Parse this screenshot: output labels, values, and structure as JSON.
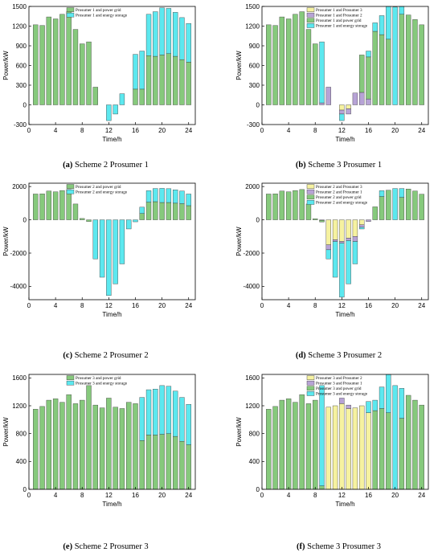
{
  "colors": {
    "grid": "#86c97c",
    "storage": "#5ce8ef",
    "p3": "#f6f2a0",
    "p2": "#b7a3d6",
    "p1": "#b7a3d6",
    "edge": "#3a3a3a"
  },
  "chart_data": [
    {
      "id": "a",
      "type": "bar",
      "caption": {
        "letter": "(a)",
        "text": " Scheme 2 Prosumer 1"
      },
      "xlabel": "Time/h",
      "ylabel": "Power/kW",
      "xlim": [
        0,
        25
      ],
      "ylim": [
        -300,
        1500
      ],
      "yticks": [
        -300,
        0,
        300,
        600,
        900,
        1200,
        1500
      ],
      "xticks": [
        0,
        4,
        8,
        12,
        16,
        20,
        24
      ],
      "legend_position": "top-left",
      "categories": [
        1,
        2,
        3,
        4,
        5,
        6,
        7,
        8,
        9,
        10,
        11,
        12,
        13,
        14,
        15,
        16,
        17,
        18,
        19,
        20,
        21,
        22,
        23,
        24
      ],
      "series": [
        {
          "name": "Prosumer 1 and power grid",
          "color_key": "grid",
          "values": [
            1220,
            1210,
            1340,
            1310,
            1380,
            1420,
            1150,
            930,
            960,
            270,
            0,
            0,
            0,
            0,
            0,
            240,
            240,
            750,
            740,
            760,
            780,
            740,
            690,
            650
          ]
        },
        {
          "name": "Prosumer 1 and energy storage",
          "color_key": "storage",
          "values": [
            0,
            0,
            0,
            0,
            0,
            0,
            0,
            0,
            0,
            0,
            0,
            -240,
            -140,
            170,
            0,
            530,
            580,
            630,
            680,
            720,
            690,
            670,
            640,
            590
          ]
        }
      ]
    },
    {
      "id": "b",
      "type": "bar",
      "caption": {
        "letter": "(b)",
        "text": " Scheme 3 Prosumer 1"
      },
      "xlabel": "Time/h",
      "ylabel": "Power/kW",
      "xlim": [
        0,
        25
      ],
      "ylim": [
        -300,
        1500
      ],
      "yticks": [
        -300,
        0,
        300,
        600,
        900,
        1200,
        1500
      ],
      "xticks": [
        0,
        4,
        8,
        12,
        16,
        20,
        24
      ],
      "legend_position": "top-left",
      "categories": [
        1,
        2,
        3,
        4,
        5,
        6,
        7,
        8,
        9,
        10,
        11,
        12,
        13,
        14,
        15,
        16,
        17,
        18,
        19,
        20,
        21,
        22,
        23,
        24
      ],
      "series": [
        {
          "name": "Prosumer 1 and Prosumer 3",
          "color_key": "p3",
          "values": [
            0,
            0,
            0,
            0,
            0,
            0,
            0,
            0,
            0,
            0,
            0,
            -80,
            -60,
            0,
            0,
            0,
            0,
            0,
            0,
            0,
            0,
            0,
            0,
            0
          ]
        },
        {
          "name": "Prosumer 1 and Prosumer 2",
          "color_key": "p2",
          "values": [
            0,
            0,
            0,
            0,
            0,
            0,
            0,
            0,
            30,
            270,
            0,
            -60,
            -80,
            180,
            190,
            90,
            0,
            0,
            0,
            0,
            0,
            0,
            0,
            0
          ]
        },
        {
          "name": "Prosumer 1 and power grid",
          "color_key": "grid",
          "values": [
            1220,
            1210,
            1340,
            1310,
            1380,
            1420,
            1150,
            930,
            0,
            0,
            0,
            0,
            0,
            0,
            570,
            640,
            1120,
            1070,
            1000,
            0,
            1380,
            1370,
            1300,
            1220
          ]
        },
        {
          "name": "Prosumer 1 and energy storage",
          "color_key": "storage",
          "values": [
            0,
            0,
            0,
            0,
            0,
            0,
            0,
            0,
            930,
            0,
            0,
            -100,
            0,
            0,
            0,
            90,
            130,
            290,
            580,
            1490,
            430,
            0,
            0,
            0
          ]
        }
      ]
    },
    {
      "id": "c",
      "type": "bar",
      "caption": {
        "letter": "(c)",
        "text": " Scheme 2 Prosumer 2"
      },
      "xlabel": "Time/h",
      "ylabel": "Power/kW",
      "xlim": [
        0,
        25
      ],
      "ylim": [
        -4800,
        2200
      ],
      "yticks": [
        -4000,
        -2000,
        0,
        2000
      ],
      "xticks": [
        0,
        4,
        8,
        12,
        16,
        20,
        24
      ],
      "legend_position": "top-left",
      "categories": [
        1,
        2,
        3,
        4,
        5,
        6,
        7,
        8,
        9,
        10,
        11,
        12,
        13,
        14,
        15,
        16,
        17,
        18,
        19,
        20,
        21,
        22,
        23,
        24
      ],
      "series": [
        {
          "name": "Prosumer 2 and power grid",
          "color_key": "grid",
          "values": [
            1550,
            1560,
            1730,
            1680,
            1760,
            1820,
            950,
            80,
            -100,
            0,
            0,
            0,
            0,
            0,
            0,
            0,
            380,
            1060,
            1090,
            1040,
            1040,
            1000,
            970,
            850
          ]
        },
        {
          "name": "Prosumer 2 and energy storage",
          "color_key": "storage",
          "values": [
            0,
            0,
            0,
            0,
            0,
            0,
            0,
            0,
            0,
            -2350,
            -3450,
            -4550,
            -3850,
            -2650,
            -550,
            -120,
            380,
            690,
            790,
            850,
            830,
            800,
            760,
            700
          ]
        }
      ]
    },
    {
      "id": "d",
      "type": "bar",
      "caption": {
        "letter": "(d)",
        "text": " Scheme 3 Prosumer 2"
      },
      "xlabel": "Time/h",
      "ylabel": "Power/kW",
      "xlim": [
        0,
        25
      ],
      "ylim": [
        -4800,
        2200
      ],
      "yticks": [
        -4000,
        -2000,
        0,
        2000
      ],
      "xticks": [
        0,
        4,
        8,
        12,
        16,
        20,
        24
      ],
      "legend_position": "top-left",
      "categories": [
        1,
        2,
        3,
        4,
        5,
        6,
        7,
        8,
        9,
        10,
        11,
        12,
        13,
        14,
        15,
        16,
        17,
        18,
        19,
        20,
        21,
        22,
        23,
        24
      ],
      "series": [
        {
          "name": "Prosumer 2 and Prosumer 3",
          "color_key": "p3",
          "values": [
            0,
            0,
            0,
            0,
            0,
            0,
            0,
            0,
            0,
            -1500,
            -1200,
            -1300,
            -1100,
            -1000,
            -300,
            0,
            0,
            0,
            0,
            0,
            0,
            0,
            0,
            0
          ]
        },
        {
          "name": "Prosumer 2 and Prosumer 1",
          "color_key": "p1",
          "values": [
            0,
            0,
            0,
            0,
            0,
            0,
            0,
            0,
            -30,
            -300,
            -100,
            -100,
            -150,
            -300,
            -150,
            -100,
            0,
            0,
            0,
            0,
            0,
            0,
            0,
            0
          ]
        },
        {
          "name": "Prosumer 2 and power grid",
          "color_key": "grid",
          "values": [
            1550,
            1560,
            1730,
            1680,
            1760,
            1820,
            950,
            60,
            -100,
            0,
            0,
            0,
            0,
            0,
            0,
            0,
            780,
            1400,
            1780,
            0,
            1350,
            1850,
            1730,
            1540
          ]
        },
        {
          "name": "Prosumer 2 and energy storage",
          "color_key": "storage",
          "values": [
            0,
            0,
            0,
            0,
            0,
            0,
            0,
            0,
            0,
            -550,
            -2150,
            -3250,
            -2600,
            -1350,
            -100,
            0,
            0,
            350,
            0,
            1880,
            530,
            0,
            0,
            0
          ]
        }
      ]
    },
    {
      "id": "e",
      "type": "bar",
      "caption": {
        "letter": "(e)",
        "text": " Scheme 2 Prosumer 3"
      },
      "xlabel": "Time/h",
      "ylabel": "Power/kW",
      "xlim": [
        0,
        25
      ],
      "ylim": [
        0,
        1650
      ],
      "yticks": [
        0,
        400,
        800,
        1200,
        1600
      ],
      "xticks": [
        0,
        4,
        8,
        12,
        16,
        20,
        24
      ],
      "legend_position": "top-left",
      "categories": [
        1,
        2,
        3,
        4,
        5,
        6,
        7,
        8,
        9,
        10,
        11,
        12,
        13,
        14,
        15,
        16,
        17,
        18,
        19,
        20,
        21,
        22,
        23,
        24
      ],
      "series": [
        {
          "name": "Prosumer 3 and power grid",
          "color_key": "grid",
          "values": [
            1150,
            1190,
            1280,
            1300,
            1250,
            1360,
            1230,
            1280,
            1490,
            1210,
            1170,
            1310,
            1180,
            1160,
            1250,
            1230,
            700,
            780,
            780,
            790,
            800,
            760,
            690,
            640
          ]
        },
        {
          "name": "Prosumer 3 and energy storage",
          "color_key": "storage",
          "values": [
            0,
            0,
            0,
            0,
            0,
            0,
            0,
            0,
            0,
            0,
            0,
            0,
            0,
            0,
            0,
            0,
            620,
            650,
            660,
            700,
            680,
            650,
            630,
            580
          ]
        }
      ]
    },
    {
      "id": "f",
      "type": "bar",
      "caption": {
        "letter": "(f)",
        "text": " Scheme 3 Prosumer 3"
      },
      "xlabel": "Time/h",
      "ylabel": "Power/kW",
      "xlim": [
        0,
        25
      ],
      "ylim": [
        0,
        1650
      ],
      "yticks": [
        0,
        400,
        800,
        1200,
        1600
      ],
      "xticks": [
        0,
        4,
        8,
        12,
        16,
        20,
        24
      ],
      "legend_position": "top-left",
      "categories": [
        1,
        2,
        3,
        4,
        5,
        6,
        7,
        8,
        9,
        10,
        11,
        12,
        13,
        14,
        15,
        16,
        17,
        18,
        19,
        20,
        21,
        22,
        23,
        24
      ],
      "series": [
        {
          "name": "Prosumer 3 and Prosumer 2",
          "color_key": "p3",
          "values": [
            0,
            0,
            0,
            0,
            0,
            0,
            0,
            0,
            0,
            1180,
            1200,
            1230,
            1160,
            1170,
            1200,
            1100,
            0,
            0,
            0,
            0,
            0,
            0,
            0,
            0
          ]
        },
        {
          "name": "Prosumer 3 and Prosumer 1",
          "color_key": "p1",
          "values": [
            0,
            0,
            0,
            0,
            0,
            0,
            0,
            0,
            0,
            0,
            0,
            80,
            50,
            0,
            0,
            0,
            0,
            0,
            0,
            0,
            0,
            0,
            0,
            0
          ]
        },
        {
          "name": "Prosumer 3 and power grid",
          "color_key": "grid",
          "values": [
            1150,
            1190,
            1280,
            1300,
            1250,
            1360,
            1230,
            1280,
            50,
            0,
            0,
            0,
            0,
            0,
            0,
            0,
            1130,
            1160,
            1100,
            0,
            1020,
            1350,
            1280,
            1210
          ]
        },
        {
          "name": "Prosumer 3 and energy storage",
          "color_key": "storage",
          "values": [
            0,
            0,
            0,
            0,
            0,
            0,
            0,
            0,
            1440,
            0,
            0,
            0,
            0,
            0,
            0,
            160,
            150,
            310,
            580,
            1490,
            430,
            0,
            0,
            0
          ]
        }
      ]
    }
  ]
}
